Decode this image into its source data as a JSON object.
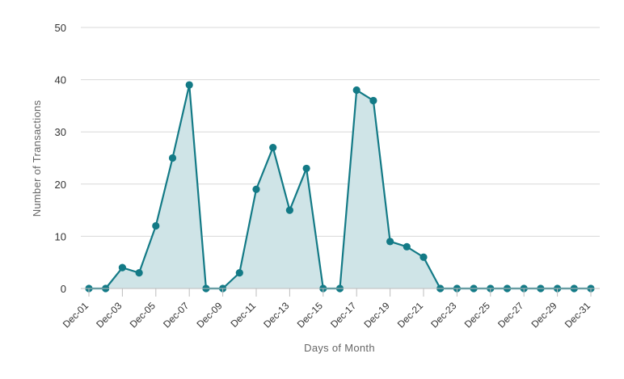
{
  "chart_data": {
    "type": "area",
    "xlabel": "Days of Month",
    "ylabel": "Number of Transactions",
    "ylim": [
      0,
      50
    ],
    "y_ticks": [
      "0",
      "10",
      "20",
      "30",
      "40",
      "50"
    ],
    "y_tick_values": [
      0,
      10,
      20,
      30,
      40,
      50
    ],
    "x_tick_labels": [
      "Dec-01",
      "Dec-03",
      "Dec-05",
      "Dec-07",
      "Dec-09",
      "Dec-11",
      "Dec-13",
      "Dec-15",
      "Dec-17",
      "Dec-19",
      "Dec-21",
      "Dec-23",
      "Dec-25",
      "Dec-27",
      "Dec-29",
      "Dec-31"
    ],
    "categories": [
      "Dec-01",
      "Dec-02",
      "Dec-03",
      "Dec-04",
      "Dec-05",
      "Dec-06",
      "Dec-07",
      "Dec-08",
      "Dec-09",
      "Dec-10",
      "Dec-11",
      "Dec-12",
      "Dec-13",
      "Dec-14",
      "Dec-15",
      "Dec-16",
      "Dec-17",
      "Dec-18",
      "Dec-19",
      "Dec-20",
      "Dec-21",
      "Dec-22",
      "Dec-23",
      "Dec-24",
      "Dec-25",
      "Dec-26",
      "Dec-27",
      "Dec-28",
      "Dec-29",
      "Dec-30",
      "Dec-31"
    ],
    "series": [
      {
        "values": [
          0,
          0,
          4,
          3,
          12,
          25,
          39,
          0,
          0,
          3,
          19,
          27,
          15,
          23,
          0,
          0,
          38,
          36,
          9,
          8,
          6,
          0,
          0,
          0,
          0,
          0,
          0,
          0,
          0,
          0,
          0
        ]
      }
    ],
    "colors": {
      "line": "#137a86",
      "marker": "#137a86",
      "fill": "#cfe4e7"
    },
    "grid": true,
    "legend": "none"
  }
}
